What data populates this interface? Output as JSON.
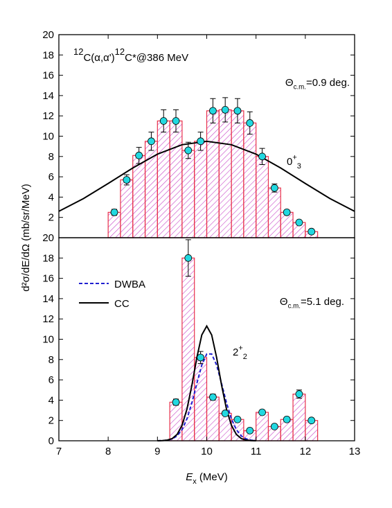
{
  "chart_data": [
    {
      "type": "histogram",
      "title": [
        {
          "text": "12",
          "sup": true
        },
        {
          "text": "C(α,α')"
        },
        {
          "text": "12",
          "sup": true
        },
        {
          "text": "C*@386 MeV"
        }
      ],
      "annotations": [
        [
          {
            "text": "Θ"
          },
          {
            "text": "c.m.",
            "sub": true
          },
          {
            "text": "=0.9 deg."
          }
        ],
        [
          {
            "text": "0"
          },
          {
            "text": "+",
            "sup": true
          },
          {
            "text": "3",
            "sub": true
          }
        ]
      ],
      "bins": [
        8.0,
        8.25,
        8.5,
        8.75,
        9.0,
        9.25,
        9.5,
        9.75,
        10.0,
        10.25,
        10.5,
        10.75,
        11.0,
        11.25,
        11.5,
        11.75,
        12.0,
        12.25
      ],
      "values": [
        2.5,
        5.7,
        8.1,
        9.5,
        11.5,
        11.5,
        8.6,
        9.5,
        12.5,
        12.6,
        12.5,
        11.3,
        8.0,
        4.9,
        2.5,
        1.5,
        0.6
      ],
      "errors": [
        0.3,
        0.5,
        0.8,
        0.9,
        1.1,
        1.1,
        0.8,
        0.9,
        1.2,
        1.2,
        1.2,
        1.1,
        0.8,
        0.4,
        0.2,
        0.2,
        0.1
      ],
      "bar_color": "#e8314a",
      "hatch_color": "#c846c8",
      "marker_color": "#22d8e0",
      "curves": [
        {
          "color": "#000000",
          "dash": false,
          "x": [
            7,
            7.5,
            8,
            8.5,
            9,
            9.5,
            10,
            10.5,
            11,
            11.5,
            12,
            12.5,
            13
          ],
          "values": [
            2.6,
            3.86,
            5.34,
            6.87,
            8.23,
            9.16,
            9.5,
            9.16,
            8.23,
            6.87,
            5.34,
            3.86,
            2.6
          ]
        }
      ],
      "xlim": [
        7,
        13
      ],
      "ylim": [
        0,
        20
      ],
      "yticks": [
        2,
        4,
        6,
        8,
        10,
        12,
        14,
        16,
        18,
        20
      ]
    },
    {
      "type": "histogram",
      "annotations": [
        [
          {
            "text": "Θ"
          },
          {
            "text": "c.m.",
            "sub": true
          },
          {
            "text": "=5.1 deg."
          }
        ],
        [
          {
            "text": "2"
          },
          {
            "text": "+",
            "sup": true
          },
          {
            "text": "2",
            "sub": true
          }
        ]
      ],
      "bins": [
        9.25,
        9.5,
        9.75,
        10.0,
        10.25,
        10.5,
        10.75,
        11.0,
        11.25,
        11.5,
        11.75,
        12.0,
        12.25
      ],
      "values": [
        3.8,
        18.0,
        8.2,
        4.3,
        2.7,
        2.1,
        1.0,
        2.8,
        1.4,
        2.1,
        4.6,
        2.0
      ],
      "errors": [
        0.3,
        1.8,
        0.6,
        0.3,
        0.2,
        0.2,
        0.1,
        0.2,
        0.2,
        0.2,
        0.4,
        0.2
      ],
      "bar_color": "#e8314a",
      "hatch_color": "#c846c8",
      "marker_color": "#22d8e0",
      "curves": [
        {
          "name": "DWBA",
          "color": "#1f1fd0",
          "dash": true,
          "x": [
            9.0,
            9.1,
            9.2,
            9.3,
            9.4,
            9.5,
            9.6,
            9.7,
            9.8,
            9.9,
            10.0,
            10.1,
            10.2,
            10.3,
            10.4,
            10.5,
            10.6,
            10.7,
            10.8,
            10.9,
            11.0
          ],
          "values": [
            0,
            0.02,
            0.06,
            0.19,
            0.48,
            1.1,
            2.17,
            3.76,
            5.66,
            7.46,
            8.55,
            8.55,
            7.46,
            5.66,
            3.76,
            2.17,
            1.1,
            0.48,
            0.19,
            0.06,
            0.02
          ]
        },
        {
          "name": "CC",
          "color": "#000000",
          "dash": false,
          "x": [
            9.0,
            9.1,
            9.2,
            9.3,
            9.4,
            9.5,
            9.6,
            9.7,
            9.8,
            9.9,
            10.0,
            10.1,
            10.2,
            10.3,
            10.4,
            10.5,
            10.6,
            10.7,
            10.8,
            10.9,
            11.0
          ],
          "values": [
            0,
            0.02,
            0.07,
            0.22,
            0.63,
            1.53,
            3.14,
            5.5,
            8.21,
            10.43,
            11.3,
            10.43,
            8.21,
            5.5,
            3.14,
            1.53,
            0.63,
            0.22,
            0.07,
            0.02,
            0
          ]
        }
      ],
      "xlim": [
        7,
        13
      ],
      "ylim": [
        0,
        20
      ],
      "xticks": [
        7,
        8,
        9,
        10,
        11,
        12,
        13
      ],
      "yticks": [
        0,
        2,
        4,
        6,
        8,
        10,
        12,
        14,
        16,
        18,
        20
      ],
      "xlabel": [
        {
          "text": "E",
          "italic": true
        },
        {
          "text": "x",
          "sub": true
        },
        {
          "text": " (MeV)"
        }
      ],
      "ylabel": "d²σ/dE/dΩ (mb/sr/MeV)"
    }
  ]
}
